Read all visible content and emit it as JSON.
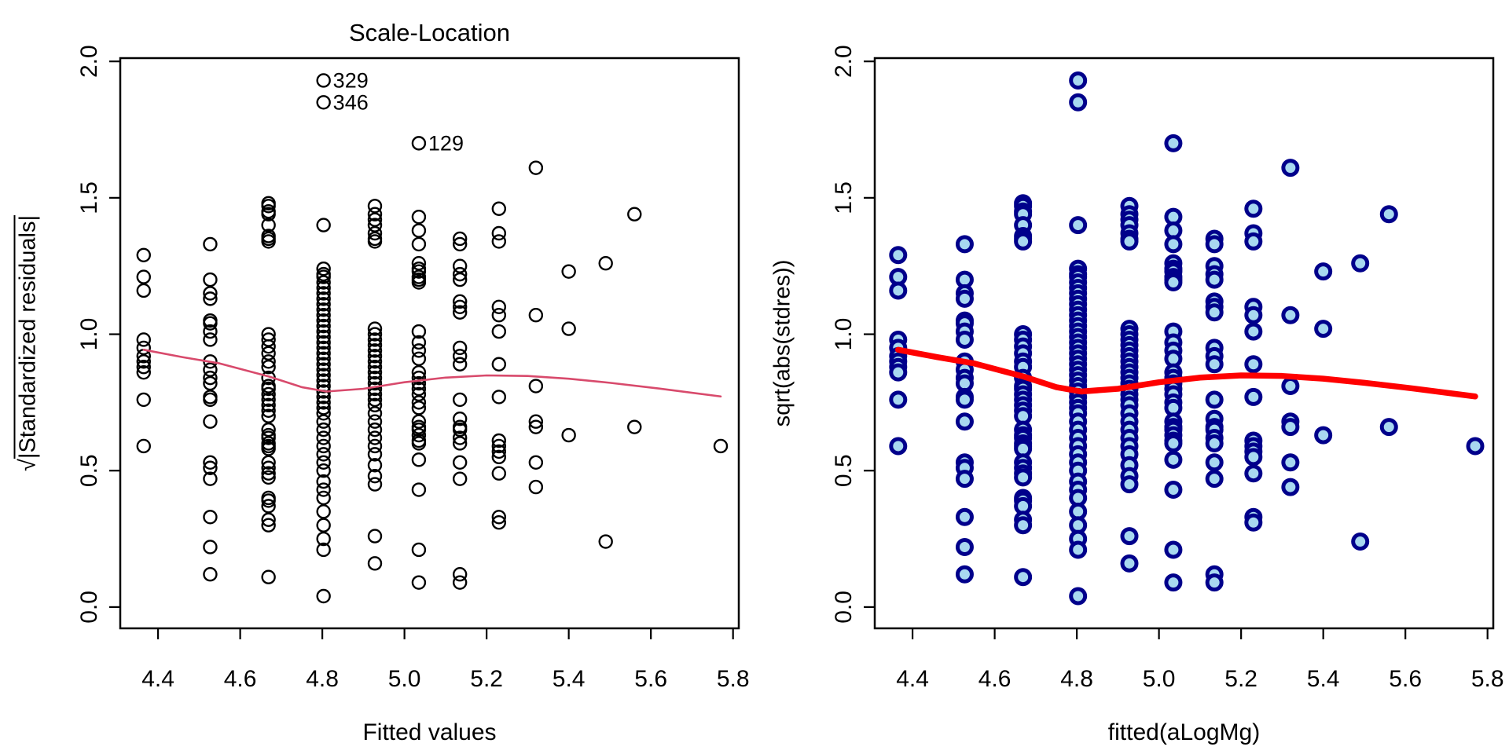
{
  "figure": {
    "background": "#ffffff",
    "description": "Two R scatter diagnostic panels side by side"
  },
  "chart_data": [
    {
      "type": "scatter",
      "panel": "left",
      "title": "Scale-Location",
      "xlabel": "Fitted values",
      "ylabel": "√|Standardized residuals|",
      "ylabel_overline_after_char": 1,
      "xlim": [
        4.308,
        5.814
      ],
      "ylim": [
        -0.078,
        2.012
      ],
      "xticks": [
        4.4,
        4.6,
        4.8,
        5.0,
        5.2,
        5.4,
        5.6,
        5.8
      ],
      "xtick_labels": [
        "4.4",
        "4.6",
        "4.8",
        "5.0",
        "5.2",
        "5.4",
        "5.6",
        "5.8"
      ],
      "yticks": [
        0.0,
        0.5,
        1.0,
        1.5,
        2.0
      ],
      "ytick_labels": [
        "0.0",
        "0.5",
        "1.0",
        "1.5",
        "2.0"
      ],
      "grid": false,
      "box": true,
      "marker": {
        "shape": "open-circle",
        "radius": 8,
        "stroke": "#000000",
        "stroke_width": 2.4,
        "fill": "none"
      },
      "smooth_line": {
        "color": "#D84A6C",
        "width": 2.6,
        "points": [
          [
            4.365,
            0.943
          ],
          [
            4.46,
            0.916
          ],
          [
            4.55,
            0.893
          ],
          [
            4.67,
            0.845
          ],
          [
            4.75,
            0.806
          ],
          [
            4.81,
            0.79
          ],
          [
            4.9,
            0.8
          ],
          [
            5.0,
            0.824
          ],
          [
            5.1,
            0.841
          ],
          [
            5.2,
            0.849
          ],
          [
            5.3,
            0.847
          ],
          [
            5.4,
            0.837
          ],
          [
            5.5,
            0.822
          ],
          [
            5.62,
            0.801
          ],
          [
            5.77,
            0.772
          ]
        ]
      },
      "annotations": [
        {
          "label": "329",
          "x": 4.803,
          "y": 1.93
        },
        {
          "label": "346",
          "x": 4.803,
          "y": 1.85
        },
        {
          "label": "129",
          "x": 5.035,
          "y": 1.7
        }
      ],
      "points": [
        [
          4.365,
          1.29
        ],
        [
          4.365,
          1.21
        ],
        [
          4.365,
          1.16
        ],
        [
          4.365,
          0.98
        ],
        [
          4.365,
          0.95
        ],
        [
          4.365,
          0.92
        ],
        [
          4.365,
          0.9
        ],
        [
          4.365,
          0.88
        ],
        [
          4.365,
          0.86
        ],
        [
          4.365,
          0.76
        ],
        [
          4.365,
          0.59
        ],
        [
          4.527,
          1.33
        ],
        [
          4.527,
          1.2
        ],
        [
          4.527,
          1.15
        ],
        [
          4.527,
          1.13
        ],
        [
          4.527,
          1.05
        ],
        [
          4.527,
          1.04
        ],
        [
          4.527,
          1.01
        ],
        [
          4.527,
          0.98
        ],
        [
          4.527,
          0.9
        ],
        [
          4.527,
          0.87
        ],
        [
          4.527,
          0.84
        ],
        [
          4.527,
          0.82
        ],
        [
          4.527,
          0.77
        ],
        [
          4.527,
          0.76
        ],
        [
          4.527,
          0.68
        ],
        [
          4.527,
          0.53
        ],
        [
          4.527,
          0.51
        ],
        [
          4.527,
          0.47
        ],
        [
          4.527,
          0.33
        ],
        [
          4.527,
          0.22
        ],
        [
          4.527,
          0.12
        ],
        [
          4.669,
          1.48
        ],
        [
          4.669,
          1.47
        ],
        [
          4.669,
          1.45
        ],
        [
          4.669,
          1.44
        ],
        [
          4.669,
          1.4
        ],
        [
          4.669,
          1.36
        ],
        [
          4.669,
          1.35
        ],
        [
          4.669,
          1.34
        ],
        [
          4.669,
          1.0
        ],
        [
          4.669,
          0.98
        ],
        [
          4.669,
          0.955
        ],
        [
          4.669,
          0.93
        ],
        [
          4.669,
          0.9
        ],
        [
          4.669,
          0.88
        ],
        [
          4.669,
          0.84
        ],
        [
          4.669,
          0.81
        ],
        [
          4.669,
          0.8
        ],
        [
          4.669,
          0.78
        ],
        [
          4.669,
          0.76
        ],
        [
          4.669,
          0.74
        ],
        [
          4.669,
          0.72
        ],
        [
          4.669,
          0.7
        ],
        [
          4.669,
          0.65
        ],
        [
          4.669,
          0.63
        ],
        [
          4.669,
          0.62
        ],
        [
          4.669,
          0.6
        ],
        [
          4.669,
          0.59
        ],
        [
          4.669,
          0.58
        ],
        [
          4.669,
          0.53
        ],
        [
          4.669,
          0.51
        ],
        [
          4.669,
          0.49
        ],
        [
          4.669,
          0.475
        ],
        [
          4.669,
          0.4
        ],
        [
          4.669,
          0.39
        ],
        [
          4.669,
          0.37
        ],
        [
          4.669,
          0.32
        ],
        [
          4.669,
          0.3
        ],
        [
          4.669,
          0.11
        ],
        [
          4.803,
          1.93
        ],
        [
          4.803,
          1.85
        ],
        [
          4.803,
          1.4
        ],
        [
          4.803,
          1.24
        ],
        [
          4.803,
          1.22
        ],
        [
          4.803,
          1.21
        ],
        [
          4.803,
          1.19
        ],
        [
          4.803,
          1.17
        ],
        [
          4.803,
          1.15
        ],
        [
          4.803,
          1.13
        ],
        [
          4.803,
          1.11
        ],
        [
          4.803,
          1.09
        ],
        [
          4.803,
          1.07
        ],
        [
          4.803,
          1.05
        ],
        [
          4.803,
          1.03
        ],
        [
          4.803,
          1.01
        ],
        [
          4.803,
          0.99
        ],
        [
          4.803,
          0.97
        ],
        [
          4.803,
          0.95
        ],
        [
          4.803,
          0.93
        ],
        [
          4.803,
          0.91
        ],
        [
          4.803,
          0.89
        ],
        [
          4.803,
          0.87
        ],
        [
          4.803,
          0.85
        ],
        [
          4.803,
          0.83
        ],
        [
          4.803,
          0.81
        ],
        [
          4.803,
          0.79
        ],
        [
          4.803,
          0.77
        ],
        [
          4.803,
          0.75
        ],
        [
          4.803,
          0.73
        ],
        [
          4.803,
          0.71
        ],
        [
          4.803,
          0.68
        ],
        [
          4.803,
          0.65
        ],
        [
          4.803,
          0.62
        ],
        [
          4.803,
          0.59
        ],
        [
          4.803,
          0.56
        ],
        [
          4.803,
          0.53
        ],
        [
          4.803,
          0.5
        ],
        [
          4.803,
          0.46
        ],
        [
          4.803,
          0.43
        ],
        [
          4.803,
          0.4
        ],
        [
          4.803,
          0.35
        ],
        [
          4.803,
          0.3
        ],
        [
          4.803,
          0.25
        ],
        [
          4.803,
          0.21
        ],
        [
          4.803,
          0.04
        ],
        [
          4.928,
          1.47
        ],
        [
          4.928,
          1.44
        ],
        [
          4.928,
          1.42
        ],
        [
          4.928,
          1.4
        ],
        [
          4.928,
          1.37
        ],
        [
          4.928,
          1.35
        ],
        [
          4.928,
          1.34
        ],
        [
          4.928,
          1.02
        ],
        [
          4.928,
          1.0
        ],
        [
          4.928,
          0.98
        ],
        [
          4.928,
          0.96
        ],
        [
          4.928,
          0.94
        ],
        [
          4.928,
          0.92
        ],
        [
          4.928,
          0.9
        ],
        [
          4.928,
          0.88
        ],
        [
          4.928,
          0.86
        ],
        [
          4.928,
          0.84
        ],
        [
          4.928,
          0.82
        ],
        [
          4.928,
          0.8
        ],
        [
          4.928,
          0.78
        ],
        [
          4.928,
          0.76
        ],
        [
          4.928,
          0.74
        ],
        [
          4.928,
          0.71
        ],
        [
          4.928,
          0.68
        ],
        [
          4.928,
          0.65
        ],
        [
          4.928,
          0.62
        ],
        [
          4.928,
          0.59
        ],
        [
          4.928,
          0.56
        ],
        [
          4.928,
          0.52
        ],
        [
          4.928,
          0.48
        ],
        [
          4.928,
          0.45
        ],
        [
          4.928,
          0.26
        ],
        [
          4.928,
          0.16
        ],
        [
          5.035,
          1.7
        ],
        [
          5.035,
          1.43
        ],
        [
          5.035,
          1.38
        ],
        [
          5.035,
          1.33
        ],
        [
          5.035,
          1.26
        ],
        [
          5.035,
          1.24
        ],
        [
          5.035,
          1.23
        ],
        [
          5.035,
          1.21
        ],
        [
          5.035,
          1.2
        ],
        [
          5.035,
          1.19
        ],
        [
          5.035,
          1.01
        ],
        [
          5.035,
          0.97
        ],
        [
          5.035,
          0.94
        ],
        [
          5.035,
          0.91
        ],
        [
          5.035,
          0.86
        ],
        [
          5.035,
          0.84
        ],
        [
          5.035,
          0.82
        ],
        [
          5.035,
          0.8
        ],
        [
          5.035,
          0.78
        ],
        [
          5.035,
          0.75
        ],
        [
          5.035,
          0.73
        ],
        [
          5.035,
          0.68
        ],
        [
          5.035,
          0.66
        ],
        [
          5.035,
          0.65
        ],
        [
          5.035,
          0.63
        ],
        [
          5.035,
          0.61
        ],
        [
          5.035,
          0.6
        ],
        [
          5.035,
          0.54
        ],
        [
          5.035,
          0.43
        ],
        [
          5.035,
          0.21
        ],
        [
          5.035,
          0.09
        ],
        [
          5.135,
          1.35
        ],
        [
          5.135,
          1.33
        ],
        [
          5.135,
          1.25
        ],
        [
          5.135,
          1.22
        ],
        [
          5.135,
          1.2
        ],
        [
          5.135,
          1.12
        ],
        [
          5.135,
          1.1
        ],
        [
          5.135,
          1.08
        ],
        [
          5.135,
          0.95
        ],
        [
          5.135,
          0.92
        ],
        [
          5.135,
          0.89
        ],
        [
          5.135,
          0.76
        ],
        [
          5.135,
          0.69
        ],
        [
          5.135,
          0.66
        ],
        [
          5.135,
          0.65
        ],
        [
          5.135,
          0.62
        ],
        [
          5.135,
          0.6
        ],
        [
          5.135,
          0.53
        ],
        [
          5.135,
          0.47
        ],
        [
          5.135,
          0.12
        ],
        [
          5.135,
          0.09
        ],
        [
          5.23,
          1.46
        ],
        [
          5.23,
          1.37
        ],
        [
          5.23,
          1.34
        ],
        [
          5.23,
          1.1
        ],
        [
          5.23,
          1.07
        ],
        [
          5.23,
          1.01
        ],
        [
          5.23,
          0.89
        ],
        [
          5.23,
          0.77
        ],
        [
          5.23,
          0.61
        ],
        [
          5.23,
          0.59
        ],
        [
          5.23,
          0.57
        ],
        [
          5.23,
          0.55
        ],
        [
          5.23,
          0.49
        ],
        [
          5.23,
          0.33
        ],
        [
          5.23,
          0.31
        ],
        [
          5.32,
          1.61
        ],
        [
          5.32,
          1.07
        ],
        [
          5.32,
          0.81
        ],
        [
          5.32,
          0.68
        ],
        [
          5.32,
          0.66
        ],
        [
          5.32,
          0.53
        ],
        [
          5.32,
          0.44
        ],
        [
          5.4,
          1.23
        ],
        [
          5.4,
          1.02
        ],
        [
          5.4,
          0.63
        ],
        [
          5.49,
          1.26
        ],
        [
          5.49,
          0.24
        ],
        [
          5.56,
          1.44
        ],
        [
          5.56,
          0.66
        ],
        [
          5.77,
          0.59
        ]
      ]
    },
    {
      "type": "scatter",
      "panel": "right",
      "title": "",
      "xlabel": "fitted(aLogMg)",
      "ylabel": "sqrt(abs(stdres))",
      "ylabel_overline_after_char": null,
      "xlim": [
        4.308,
        5.814
      ],
      "ylim": [
        -0.078,
        2.012
      ],
      "xticks": [
        4.4,
        4.6,
        4.8,
        5.0,
        5.2,
        5.4,
        5.6,
        5.8
      ],
      "xtick_labels": [
        "4.4",
        "4.6",
        "4.8",
        "5.0",
        "5.2",
        "5.4",
        "5.6",
        "5.8"
      ],
      "yticks": [
        0.0,
        0.5,
        1.0,
        1.5,
        2.0
      ],
      "ytick_labels": [
        "0.0",
        "0.5",
        "1.0",
        "1.5",
        "2.0"
      ],
      "grid": false,
      "box": true,
      "marker": {
        "shape": "filled-circle",
        "radius": 9,
        "stroke": "#00008B",
        "stroke_width": 5,
        "fill": "#A8D8F0"
      },
      "smooth_line": {
        "color": "#FF0000",
        "width": 7.5,
        "points": "same_as_left"
      },
      "annotations": [],
      "points": "same_as_left"
    }
  ]
}
